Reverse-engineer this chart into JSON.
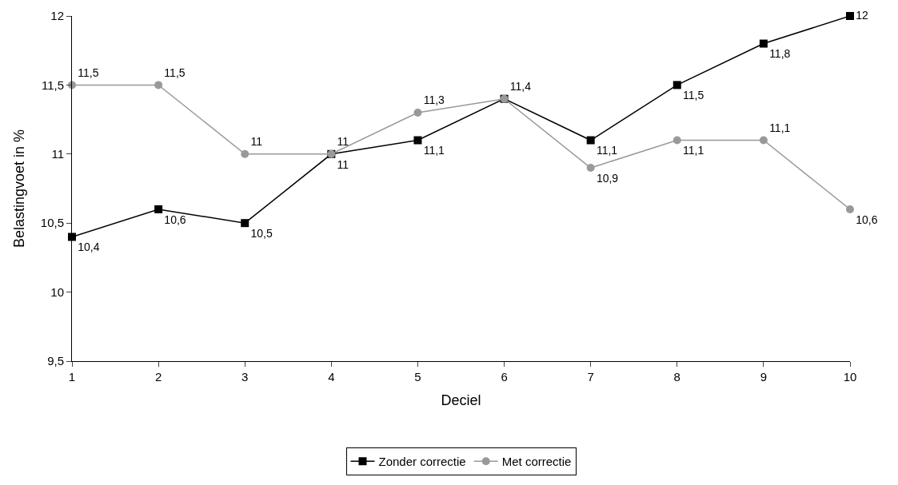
{
  "chart_data": {
    "type": "line",
    "xlabel": "Deciel",
    "ylabel": "Belastingvoet in %",
    "categories": [
      "1",
      "2",
      "3",
      "4",
      "5",
      "6",
      "7",
      "8",
      "9",
      "10"
    ],
    "series": [
      {
        "name": "Zonder correctie",
        "color": "#000000",
        "marker": "square",
        "values": [
          10.4,
          10.6,
          10.5,
          11,
          11.1,
          11.4,
          11.1,
          11.5,
          11.8,
          12
        ],
        "value_labels": [
          "10,4",
          "10,6",
          "10,5",
          "11",
          "11,1",
          "11,4",
          "11,1",
          "11,5",
          "11,8",
          "12"
        ]
      },
      {
        "name": "Met correctie",
        "color": "#999999",
        "marker": "circle",
        "values": [
          11.5,
          11.5,
          11,
          11,
          11.3,
          11.4,
          10.9,
          11.1,
          11.1,
          10.6
        ],
        "value_labels": [
          "11,5",
          "11,5",
          "11",
          "11",
          "11,3",
          null,
          "10,9",
          "11,1",
          "11,1",
          "10,6"
        ]
      }
    ],
    "ylim": [
      9.5,
      12
    ],
    "yticks": [
      {
        "value": 9.5,
        "label": "9,5"
      },
      {
        "value": 10,
        "label": "10"
      },
      {
        "value": 10.5,
        "label": "10,5"
      },
      {
        "value": 11,
        "label": "11"
      },
      {
        "value": 11.5,
        "label": "11,5"
      },
      {
        "value": 12,
        "label": "12"
      }
    ],
    "legend": "bottom",
    "line_style": "solid"
  }
}
